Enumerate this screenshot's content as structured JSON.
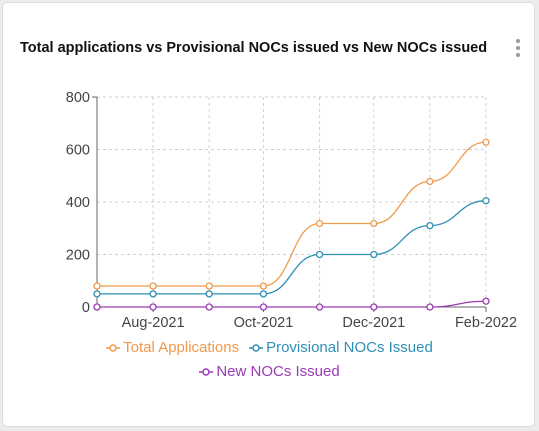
{
  "card": {
    "title": "Total applications vs Provisional NOCs issued vs New NOCs issued",
    "menu_icon": "more-vertical-icon"
  },
  "chart_data": {
    "type": "line",
    "title": "Total applications vs Provisional NOCs issued vs New NOCs issued",
    "x": [
      "2021-07-01",
      "2021-08-01",
      "2021-09-01",
      "2021-10-01",
      "2021-11-01",
      "2021-12-01",
      "2022-01-01",
      "2022-02-01"
    ],
    "x_tick_labels": [
      "Aug-2021",
      "Oct-2021",
      "Dec-2021",
      "Feb-2022"
    ],
    "y_tick_labels": [
      "0",
      "200",
      "400",
      "600",
      "800"
    ],
    "ylim": [
      0,
      800
    ],
    "grid": true,
    "legend_position": "bottom",
    "series": [
      {
        "name": "Total Applications",
        "color": "#ef9a4c",
        "values": [
          80,
          80,
          80,
          80,
          318,
          318,
          478,
          628
        ]
      },
      {
        "name": "Provisional NOCs Issued",
        "color": "#2f8fb6",
        "values": [
          50,
          50,
          50,
          50,
          200,
          200,
          310,
          405
        ]
      },
      {
        "name": "New NOCs Issued",
        "color": "#9b3bb5",
        "values": [
          0,
          0,
          0,
          0,
          0,
          0,
          0,
          22
        ]
      }
    ]
  }
}
